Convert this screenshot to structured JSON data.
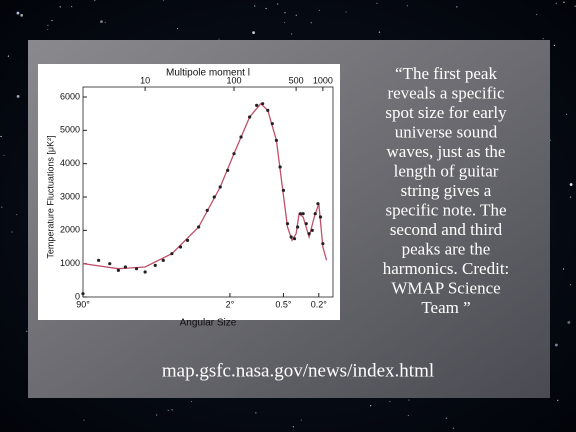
{
  "chart_data": {
    "type": "line",
    "title": "Multipole moment l",
    "xlabel": "Angular Size",
    "ylabel": "Temperature Fluctuations [μK²]",
    "xscale": "log",
    "xlim": [
      2,
      1300
    ],
    "ylim": [
      0,
      6000
    ],
    "yticks": [
      0,
      1000,
      2000,
      3000,
      4000,
      5000,
      6000
    ],
    "xticks": [
      {
        "value": 2,
        "label": "90°"
      },
      {
        "value": 90,
        "label": "2°"
      },
      {
        "value": 360,
        "label": "0.5°"
      },
      {
        "value": 900,
        "label": "0.2°"
      }
    ],
    "x2ticks": [
      10,
      100,
      500,
      1000
    ],
    "series": [
      {
        "style": "line",
        "color": "#c0506a",
        "x": [
          2,
          5,
          10,
          20,
          40,
          70,
          100,
          150,
          200,
          240,
          300,
          350,
          400,
          450,
          500,
          540,
          600,
          700,
          800,
          900,
          1000,
          1100
        ],
        "values": [
          1000,
          850,
          900,
          1300,
          2100,
          3300,
          4300,
          5400,
          5800,
          5600,
          4700,
          3300,
          2100,
          1700,
          1900,
          2500,
          2400,
          1800,
          2400,
          2800,
          1500,
          1100
        ]
      },
      {
        "style": "markers",
        "color": "#222",
        "x": [
          2,
          3,
          4,
          5,
          6,
          8,
          10,
          13,
          16,
          20,
          25,
          30,
          40,
          50,
          60,
          70,
          85,
          100,
          120,
          150,
          180,
          210,
          240,
          270,
          300,
          330,
          360,
          400,
          440,
          480,
          520,
          560,
          600,
          650,
          700,
          760,
          820,
          880,
          940,
          1000
        ],
        "values": [
          100,
          1100,
          1000,
          800,
          900,
          850,
          750,
          950,
          1100,
          1300,
          1500,
          1700,
          2100,
          2600,
          3000,
          3300,
          3800,
          4300,
          4800,
          5400,
          5750,
          5800,
          5600,
          5200,
          4700,
          3900,
          3200,
          2200,
          1800,
          1750,
          2100,
          2500,
          2500,
          2200,
          1900,
          2000,
          2500,
          2800,
          2400,
          1600
        ]
      }
    ]
  },
  "quote": [
    "“The first peak",
    "reveals a specific",
    "spot size for early",
    "universe sound",
    "waves, just as the",
    "length of guitar",
    "string gives a",
    "specific note.  The",
    "second and third",
    "peaks are the",
    "harmonics. Credit:",
    "WMAP Science",
    "Team ”"
  ],
  "url": "map.gsfc.nasa.gov/news/index.html"
}
